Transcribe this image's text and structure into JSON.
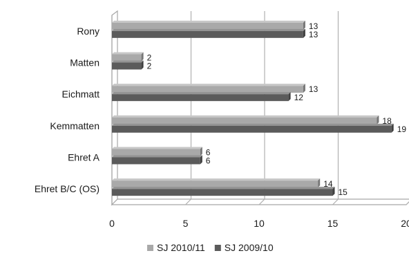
{
  "chart_data": {
    "type": "bar",
    "orientation": "horizontal",
    "style": "3d",
    "categories": [
      "Rony",
      "Matten",
      "Eichmatt",
      "Kemmatten",
      "Ehret A",
      "Ehret B/C (OS)"
    ],
    "series": [
      {
        "name": "SJ 2010/11",
        "values": [
          13,
          2,
          13,
          18,
          6,
          14
        ],
        "color": "#a9a9a9"
      },
      {
        "name": "SJ 2009/10",
        "values": [
          13,
          2,
          12,
          19,
          6,
          15
        ],
        "color": "#5b5b5b"
      }
    ],
    "xlim": [
      0,
      20
    ],
    "xticks": [
      0,
      5,
      10,
      15,
      20
    ],
    "grid": true,
    "legend": "bottom"
  }
}
